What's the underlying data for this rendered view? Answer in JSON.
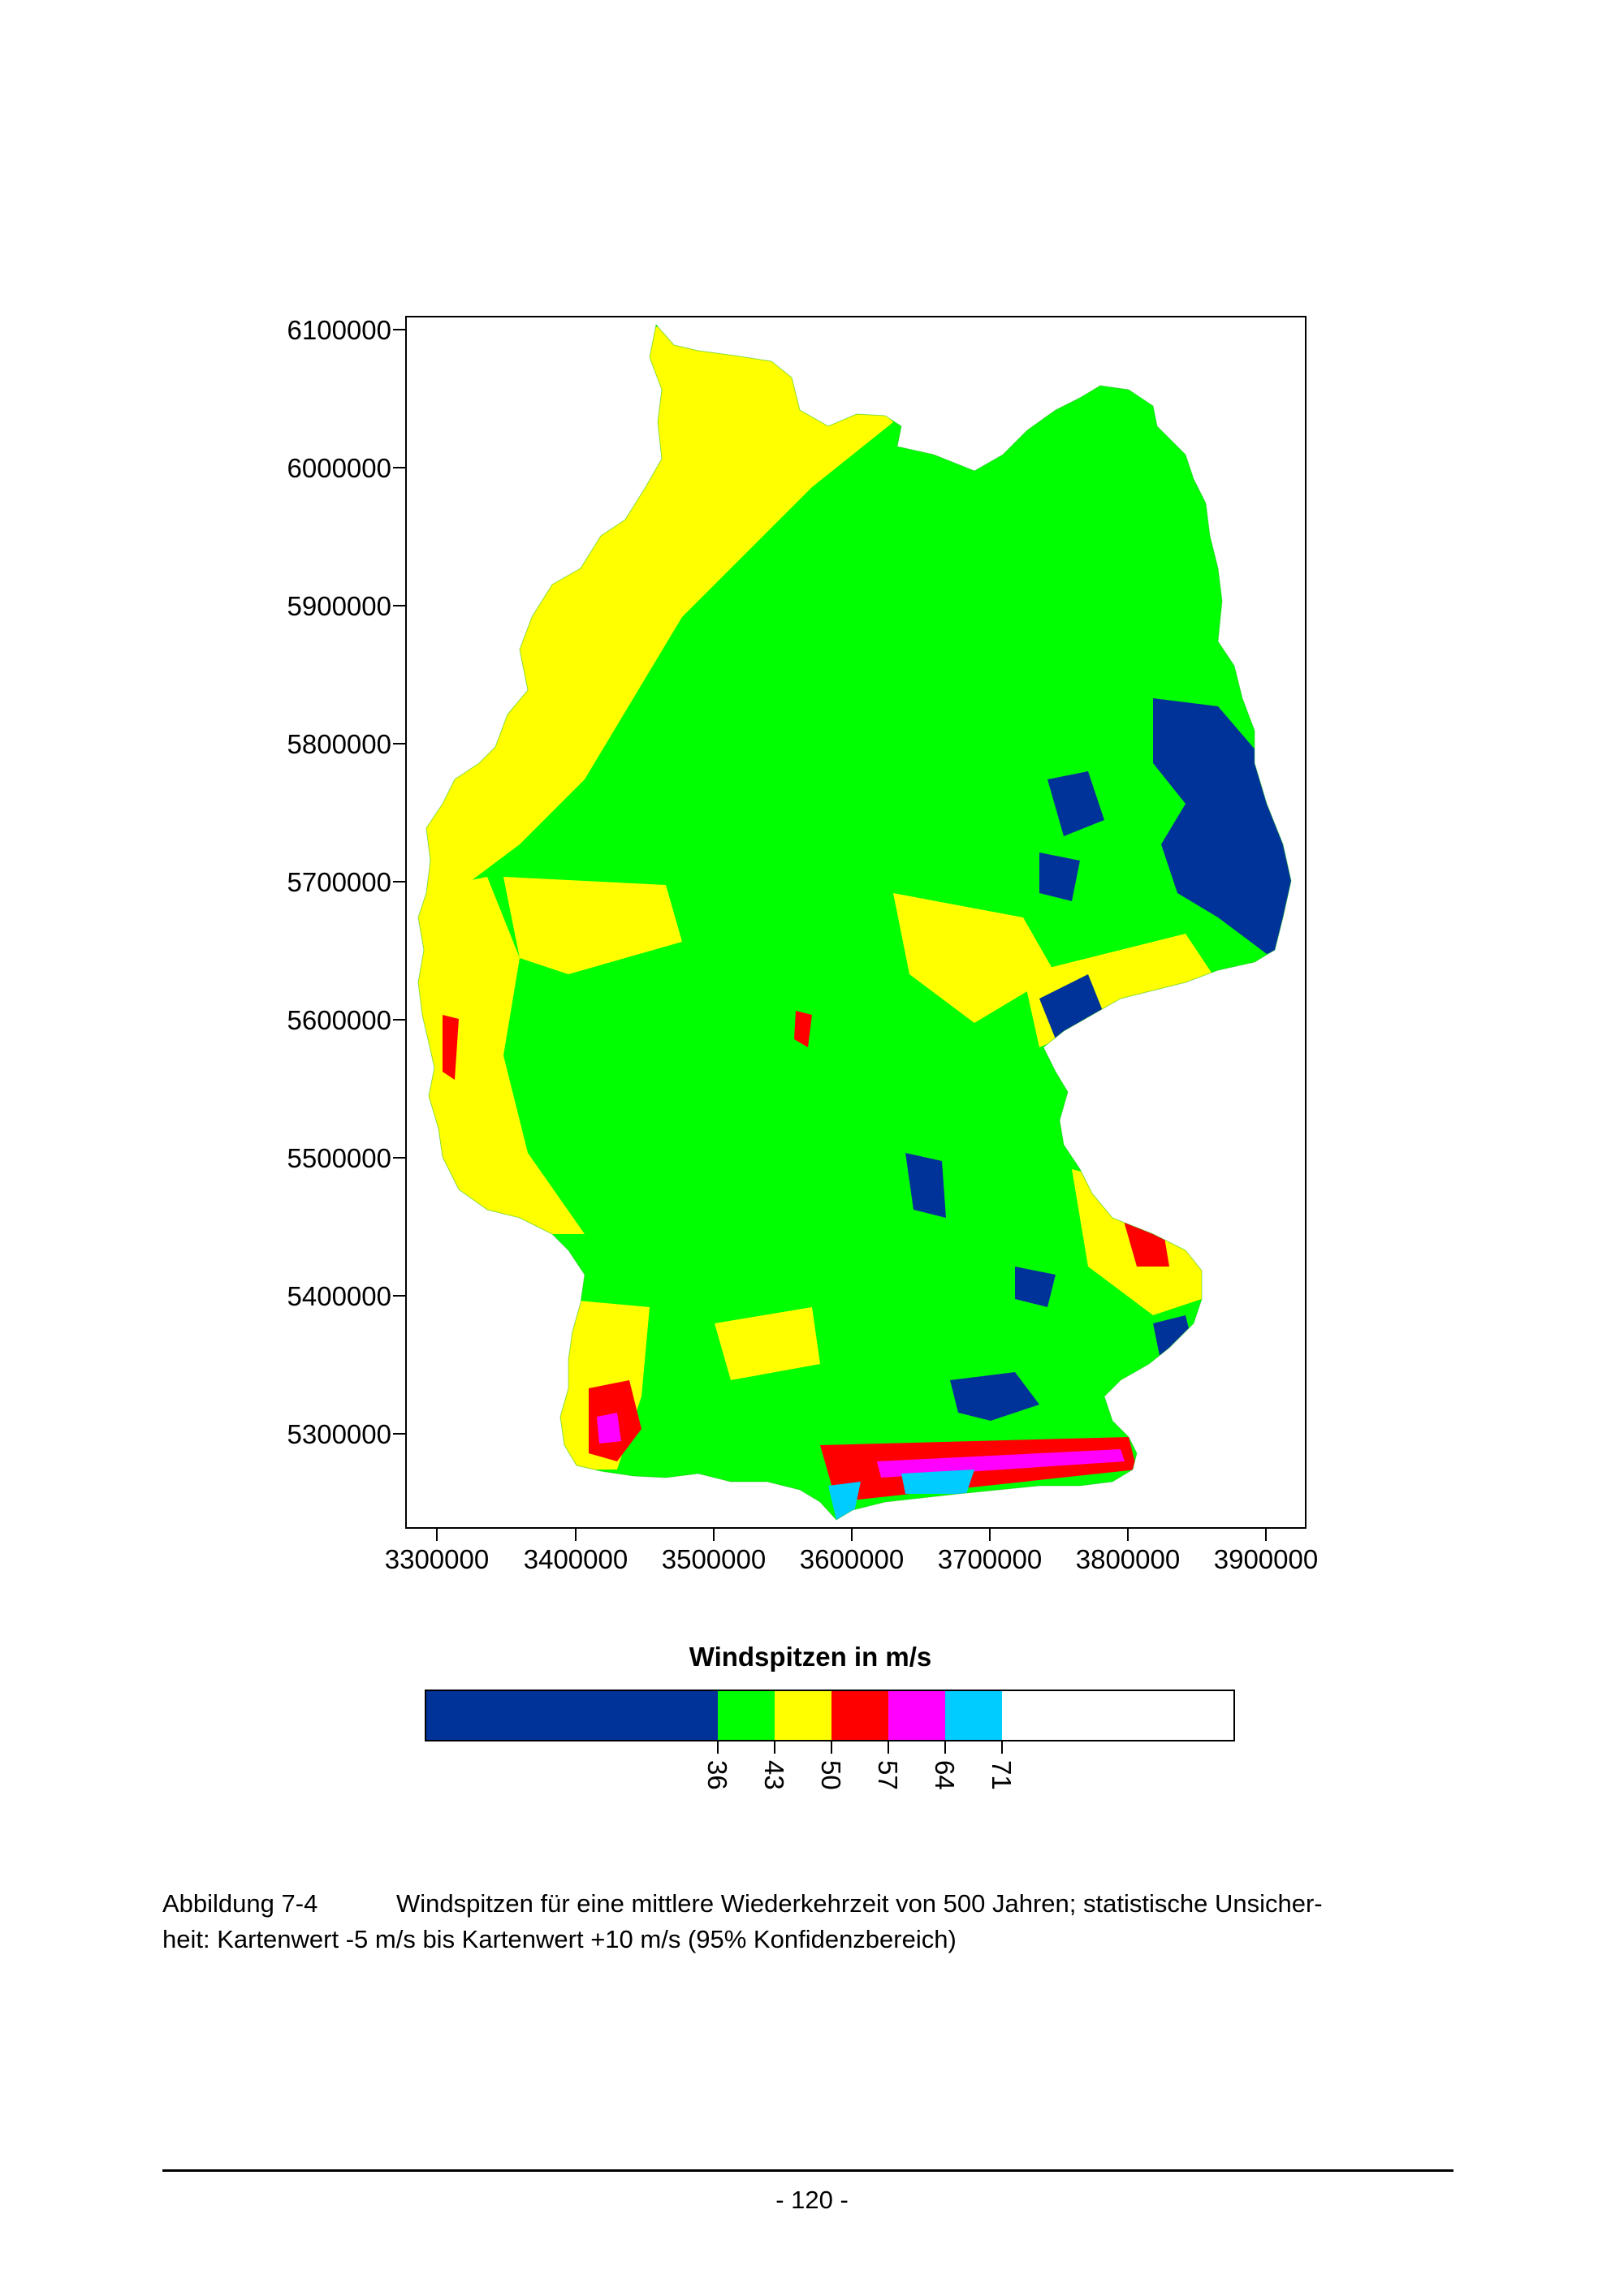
{
  "map": {
    "y_axis_labels": [
      "6100000",
      "6000000",
      "5900000",
      "5800000",
      "5700000",
      "5600000",
      "5500000",
      "5400000",
      "5300000"
    ],
    "x_axis_labels": [
      "3300000",
      "3400000",
      "3500000",
      "3600000",
      "3700000",
      "3800000",
      "3900000"
    ],
    "colors": {
      "below_36": "#003399",
      "36_43": "#00ff00",
      "43_50": "#ffff00",
      "50_57": "#ff0000",
      "57_64": "#ff00ff",
      "64_71": "#00ccff",
      "above_71": "#ffffff"
    }
  },
  "legend": {
    "title": "Windspitzen in m/s",
    "ticks": [
      "36",
      "43",
      "50",
      "57",
      "64",
      "71"
    ]
  },
  "caption": {
    "label": "Abbildung 7-4",
    "line1": "Windspitzen für eine mittlere Wiederkehrzeit von 500 Jahren; statistische Unsicher-",
    "line2": "heit: Kartenwert -5 m/s bis Kartenwert +10 m/s (95% Konfidenzbereich)"
  },
  "page_number": "- 120 -"
}
